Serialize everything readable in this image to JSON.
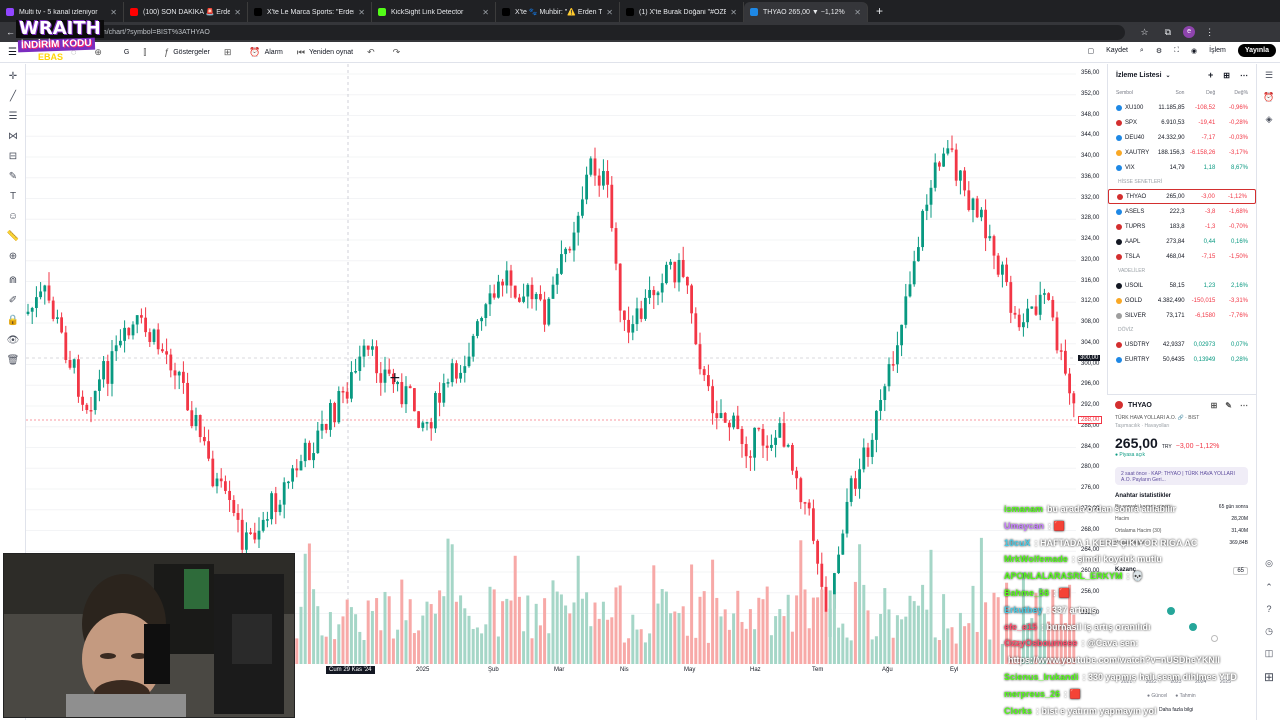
{
  "browser": {
    "tabs": [
      {
        "title": "Multi tv - 5 kanal izleniyor",
        "fav": "#9146ff"
      },
      {
        "title": "(100) SON DAKİKA 🚨 Erden",
        "fav": "#ff0000"
      },
      {
        "title": "X'te Le Marca Sports: \"Erden Ti",
        "fav": "#000000"
      },
      {
        "title": "KickSight Link Detector",
        "fav": "#53fc18"
      },
      {
        "title": "X'te 🐾 Muhbir: \"⚠️ Erden Tim",
        "fav": "#000000"
      },
      {
        "title": "(1) X'te Burak Doğani \"#ÖZEL",
        "fav": "#000000"
      },
      {
        "title": "THYAO 265,00 ▼ −1,12%",
        "fav": "#1e88e5"
      }
    ],
    "close_glyph": "✕",
    "new_tab": "+",
    "url": "tradingview.com/chart/?symbol=BIST%3ATHYAO",
    "back": "←",
    "reload": "⟳",
    "star": "☆",
    "profile_initial": "e"
  },
  "toolbar": {
    "menu": "☰",
    "items": [
      {
        "icon": "◌",
        "label": ""
      },
      {
        "icon": "⊕",
        "label": ""
      },
      {
        "icon": "",
        "label": "G"
      },
      {
        "icon": "⫿",
        "label": ""
      },
      {
        "icon": "ƒ",
        "label": "Göstergeler"
      },
      {
        "icon": "⊞",
        "label": ""
      },
      {
        "icon": "⏰",
        "label": "Alarm"
      },
      {
        "icon": "⏮",
        "label": "Yeniden oynat"
      },
      {
        "icon": "↶",
        "label": ""
      },
      {
        "icon": "↷",
        "label": ""
      }
    ],
    "save": "Kaydet",
    "trade": "İşlem",
    "publish": "Yayınla"
  },
  "chart": {
    "price_ticks": [
      "356,00",
      "352,00",
      "348,00",
      "344,00",
      "340,00",
      "336,00",
      "332,00",
      "328,00",
      "324,00",
      "320,00",
      "316,00",
      "312,00",
      "308,00",
      "304,00",
      "300,00",
      "296,00",
      "292,00",
      "288,00",
      "284,00",
      "280,00",
      "276,00",
      "272,00",
      "268,00",
      "264,00",
      "260,00",
      "256,00",
      "252,00"
    ],
    "current_price_label": "300,00",
    "last_price_label": "288,00",
    "time_ticks": [
      "2025",
      "Şub",
      "Mar",
      "Nis",
      "May",
      "Haz",
      "Tem",
      "Ağu",
      "Eyl"
    ],
    "time_cursor": "Cum 29 Kas '24"
  },
  "watchlist": {
    "title": "İzleme Listesi",
    "cols": [
      "Sembol",
      "Son",
      "Değ",
      "Değ%"
    ],
    "groups": [
      {
        "label": "",
        "rows": [
          {
            "sym": "XU100",
            "last": "11.185,85",
            "chg": "-108,52",
            "pct": "-0,96%",
            "dot": "#1e88e5",
            "dir": "dn"
          },
          {
            "sym": "SPX",
            "last": "6.910,53",
            "chg": "-19,41",
            "pct": "-0,28%",
            "dot": "#d32f2f",
            "dir": "dn"
          },
          {
            "sym": "DEU40",
            "last": "24.332,90",
            "chg": "-7,17",
            "pct": "-0,03%",
            "dot": "#1e88e5",
            "dir": "dn"
          },
          {
            "sym": "XAUTRY",
            "last": "188.156,3",
            "chg": "-6.158,26",
            "pct": "-3,17%",
            "dot": "#f9a825",
            "dir": "dn"
          },
          {
            "sym": "VIX",
            "last": "14,79",
            "chg": "1,18",
            "pct": "8,67%",
            "dot": "#1e88e5",
            "dir": "up"
          }
        ]
      },
      {
        "label": "HİSSE SENETLERİ",
        "rows": [
          {
            "sym": "THYAO",
            "last": "265,00",
            "chg": "-3,00",
            "pct": "-1,12%",
            "dot": "#d32f2f",
            "dir": "dn",
            "sel": true
          },
          {
            "sym": "ASELS",
            "last": "222,3",
            "chg": "-3,8",
            "pct": "-1,68%",
            "dot": "#1e88e5",
            "dir": "dn"
          },
          {
            "sym": "TUPRS",
            "last": "183,8",
            "chg": "-1,3",
            "pct": "-0,70%",
            "dot": "#d32f2f",
            "dir": "dn"
          },
          {
            "sym": "AAPL",
            "last": "273,84",
            "chg": "0,44",
            "pct": "0,16%",
            "dot": "#131722",
            "dir": "up"
          },
          {
            "sym": "TSLA",
            "last": "468,04",
            "chg": "-7,15",
            "pct": "-1,50%",
            "dot": "#d32f2f",
            "dir": "dn"
          }
        ]
      },
      {
        "label": "VADELİLER",
        "rows": [
          {
            "sym": "USOIL",
            "last": "58,15",
            "chg": "1,23",
            "pct": "2,16%",
            "dot": "#131722",
            "dir": "up"
          },
          {
            "sym": "GOLD",
            "last": "4.382,490",
            "chg": "-150,015",
            "pct": "-3,31%",
            "dot": "#f9a825",
            "dir": "dn"
          },
          {
            "sym": "SILVER",
            "last": "73,171",
            "chg": "-6,1580",
            "pct": "-7,76%",
            "dot": "#9e9e9e",
            "dir": "dn"
          }
        ]
      },
      {
        "label": "DÖVİZ",
        "rows": [
          {
            "sym": "USDTRY",
            "last": "42,9337",
            "chg": "0,02973",
            "pct": "0,07%",
            "dot": "#d32f2f",
            "dir": "up"
          },
          {
            "sym": "EURTRY",
            "last": "50,6435",
            "chg": "0,13949",
            "pct": "0,28%",
            "dot": "#1e88e5",
            "dir": "up"
          }
        ]
      }
    ]
  },
  "detail": {
    "symbol": "THYAO",
    "company": "TÜRK HAVA YOLLARI A.O. 🔗 · BIST",
    "sector": "Taşımacılık · Havayolları",
    "price": "265,00",
    "currency": "TRY",
    "change": "−3,00 −1,12%",
    "market": "● Piyasa açık",
    "news": "2 saat önce · KAP: THYAO | TÜRK HAVA YOLLARI A.O. Payların Geri...",
    "stats_title": "Anahtar istatistikler",
    "stats": [
      {
        "k": "Bir sonraki kazanç raporu",
        "v": "65 gün sonra"
      },
      {
        "k": "Hacim",
        "v": "28,20M"
      },
      {
        "k": "Ortalama Hacim (30)",
        "v": "31,40M"
      },
      {
        "k": "Piyasa Değeri",
        "v": "369,84B"
      }
    ],
    "earnings_title": "Kazanç",
    "earnings_years": [
      "2021",
      "2022",
      "2023",
      "2024",
      "2025"
    ],
    "earnings_badge": "65",
    "legend": [
      "● Güncel",
      "● Tahmin"
    ],
    "more": "Daha fazla bilgi"
  },
  "stream": {
    "logo_main": "WRAITH",
    "logo_sub": "İNDİRİM KODU",
    "logo_sub2": "EBAS"
  },
  "chat": [
    {
      "user": "ismanam",
      "msg": "bu arada ordan sonra atılabilir",
      "color": "#53fc18"
    },
    {
      "user": "Umaycan",
      "msg": ": 🟥",
      "color": "#c77dff"
    },
    {
      "user": "10cuX",
      "msg": ": HAFTADA 1 KERE ÇIKIYOR RIGA AC",
      "color": "#48cae4"
    },
    {
      "user": "MrkWolfemade",
      "msg": ": şimdi koyduk mutlu",
      "color": "#53fc18"
    },
    {
      "user": "APONLALARASRL_ERKYM",
      "msg": ": 💀",
      "color": "#53fc18"
    },
    {
      "user": "Bahme_58",
      "msg": ": 🟥",
      "color": "#53fc18"
    },
    {
      "user": "Erkutbey",
      "msg": ": 337 artmış",
      "color": "#48cae4"
    },
    {
      "user": "efe_e15",
      "msg": ": burnasil iş artış oranılıdı",
      "color": "#ff4d6d"
    },
    {
      "user": "OzzyOsbourneee",
      "msg": ": @Cava sen:",
      "color": "#ff4d6d"
    },
    {
      "user": "",
      "msg": "https://www.youtube.com/watch?v=nUSDheYKNII",
      "color": "#ffffff"
    },
    {
      "user": "Scienus_Irukandi",
      "msg": ": 330 yapmış hali şeam dihlmes YTD",
      "color": "#53fc18"
    },
    {
      "user": "merpreus_26",
      "msg": ": 🟥",
      "color": "#53fc18"
    },
    {
      "user": "Clorks",
      "msg": ": bist e yatırım yapmayın yol",
      "color": "#53fc18"
    }
  ],
  "colors": {
    "up": "#089981",
    "down": "#f23645",
    "vol_up": "#a5d6c7",
    "vol_down": "#f7a9a7"
  }
}
